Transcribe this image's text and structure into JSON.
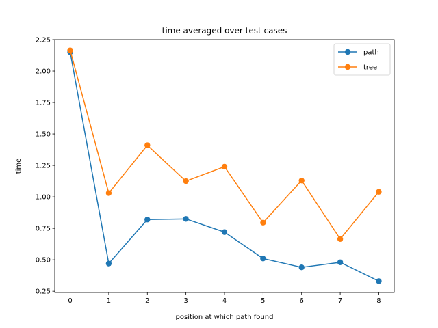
{
  "chart_data": {
    "type": "line",
    "title": "time averaged over test cases",
    "xlabel": "position at which path found",
    "ylabel": "time",
    "x": [
      0,
      1,
      2,
      3,
      4,
      5,
      6,
      7,
      8
    ],
    "xticks": [
      "0",
      "1",
      "2",
      "3",
      "4",
      "5",
      "6",
      "7",
      "8"
    ],
    "yticks": [
      "0.25",
      "0.50",
      "0.75",
      "1.00",
      "1.25",
      "1.50",
      "1.75",
      "2.00",
      "2.25"
    ],
    "xlim": [
      -0.4,
      8.4
    ],
    "ylim": [
      0.24,
      2.25
    ],
    "grid": false,
    "legend_position": "top-right",
    "series": [
      {
        "name": "path",
        "color": "#1f77b4",
        "marker": "circle",
        "values": [
          2.15,
          0.47,
          0.82,
          0.825,
          0.72,
          0.51,
          0.44,
          0.48,
          0.33
        ]
      },
      {
        "name": "tree",
        "color": "#ff7f0e",
        "marker": "circle",
        "values": [
          2.165,
          1.03,
          1.41,
          1.125,
          1.24,
          0.795,
          1.13,
          0.665,
          1.04
        ]
      }
    ]
  }
}
